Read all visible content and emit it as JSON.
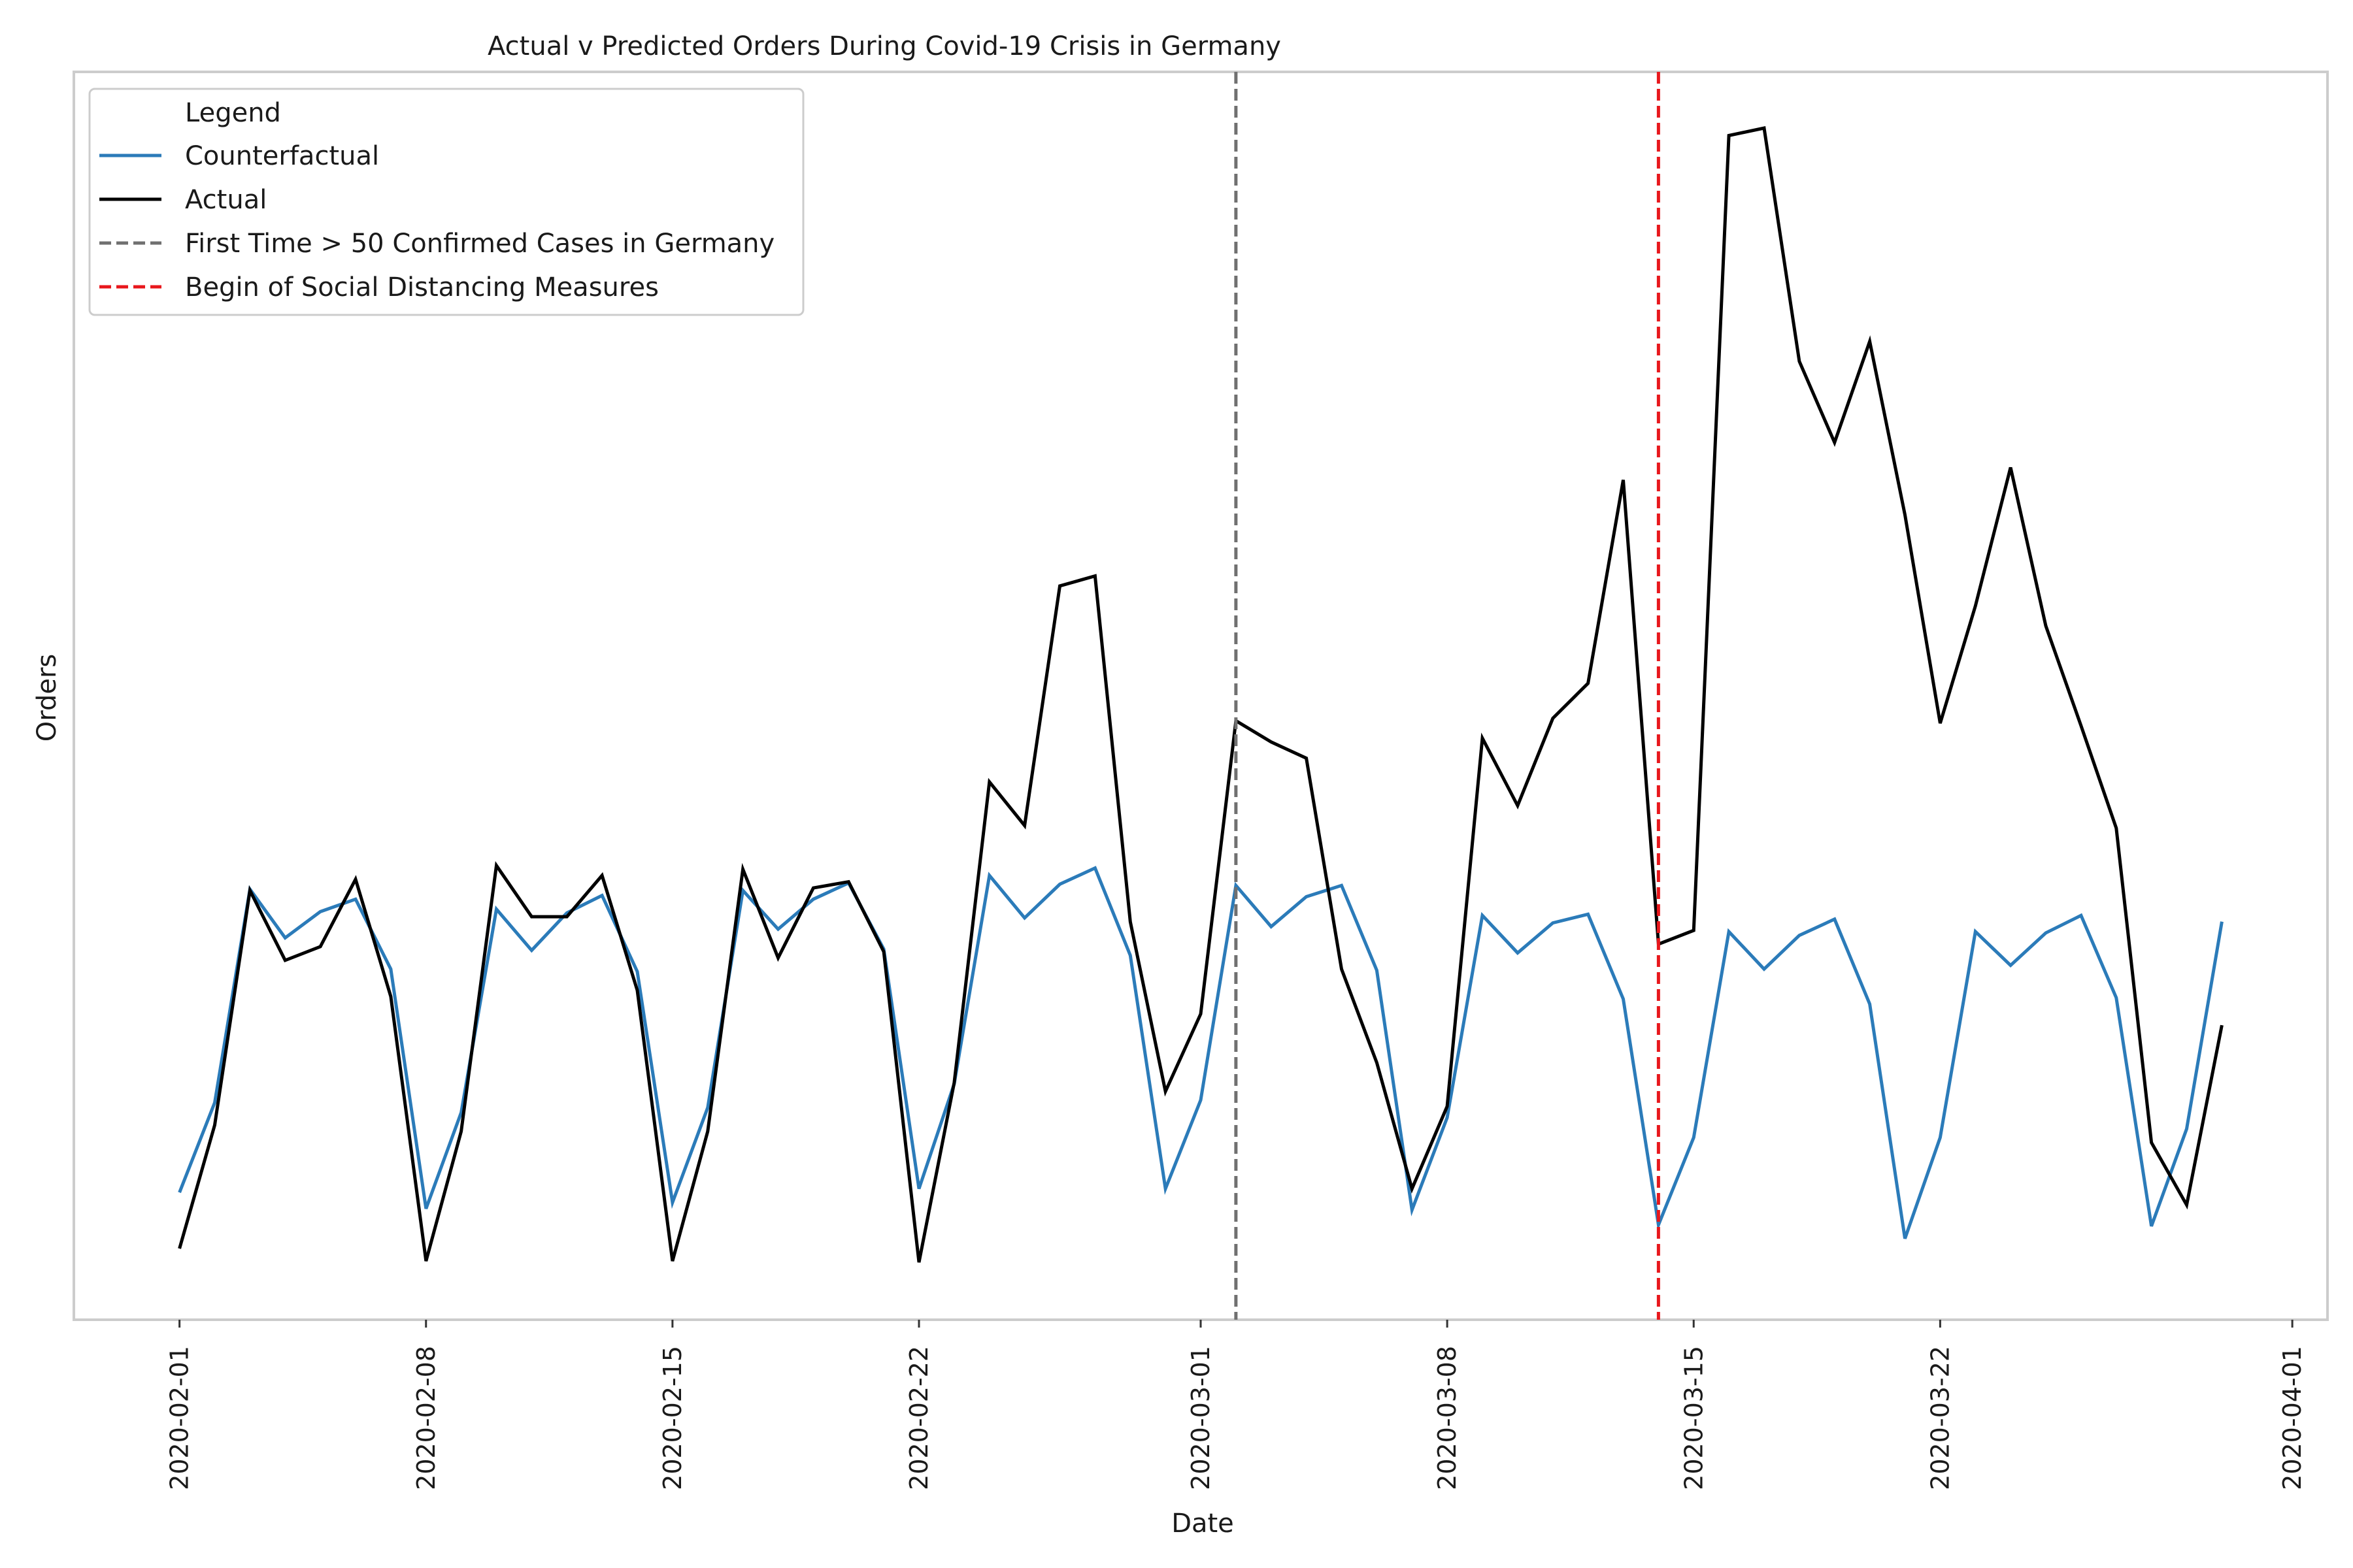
{
  "chart_data": {
    "type": "line",
    "title": "Actual v Predicted Orders During Covid-19 Crisis in Germany",
    "xlabel": "Date",
    "ylabel": "Orders",
    "x_start": "2020-02-01",
    "xlim": [
      "2020-01-29",
      "2020-04-02"
    ],
    "ylim": [
      0,
      100
    ],
    "y_ticks_shown": false,
    "grid": false,
    "x_ticks": [
      "2020-02-01",
      "2020-02-08",
      "2020-02-15",
      "2020-02-22",
      "2020-03-01",
      "2020-03-08",
      "2020-03-15",
      "2020-03-22",
      "2020-04-01"
    ],
    "legend": {
      "title": "Legend",
      "placement": "top-left",
      "entries": [
        {
          "label": "Counterfactual",
          "color": "#2b7bb9",
          "style": "solid"
        },
        {
          "label": "Actual",
          "color": "#000000",
          "style": "solid"
        },
        {
          "label": "First Time > 50 Confirmed Cases in Germany",
          "color": "#707070",
          "style": "dashed"
        },
        {
          "label": "Begin of Social Distancing Measures",
          "color": "#e8171c",
          "style": "dashed"
        }
      ]
    },
    "vlines": [
      {
        "label": "First Time > 50 Confirmed Cases in Germany",
        "date": "2020-03-02",
        "color": "#707070"
      },
      {
        "label": "Begin of Social Distancing Measures",
        "date": "2020-03-14",
        "color": "#e8171c"
      }
    ],
    "series": [
      {
        "name": "Counterfactual",
        "color": "#2b7bb9",
        "values": [
          10.2,
          17.4,
          34.5,
          30.6,
          32.7,
          33.7,
          28.1,
          8.9,
          16.6,
          32.9,
          29.6,
          32.6,
          34.0,
          27.9,
          9.4,
          17.0,
          34.4,
          31.3,
          33.7,
          35.0,
          29.7,
          10.5,
          18.9,
          35.6,
          32.2,
          34.9,
          36.2,
          29.2,
          10.5,
          17.6,
          34.8,
          31.5,
          33.9,
          34.8,
          28.0,
          8.8,
          16.2,
          32.4,
          29.4,
          31.8,
          32.5,
          25.7,
          7.6,
          14.6,
          31.1,
          28.1,
          30.8,
          32.1,
          25.3,
          6.5,
          14.6,
          31.1,
          28.4,
          31.0,
          32.4,
          25.8,
          7.5,
          15.3,
          31.9
        ]
      },
      {
        "name": "Actual",
        "color": "#000000",
        "values": [
          5.7,
          15.6,
          34.4,
          28.8,
          29.9,
          35.3,
          25.9,
          4.7,
          15.1,
          36.4,
          32.3,
          32.3,
          35.6,
          26.4,
          4.7,
          15.1,
          36.1,
          29.0,
          34.6,
          35.1,
          29.5,
          4.6,
          19.0,
          43.1,
          39.6,
          58.8,
          59.6,
          31.9,
          18.3,
          24.5,
          48.0,
          46.3,
          45.0,
          28.1,
          20.6,
          10.5,
          17.1,
          46.6,
          41.2,
          48.2,
          51.0,
          67.3,
          30.1,
          31.2,
          94.9,
          95.5,
          76.8,
          70.3,
          78.4,
          64.5,
          47.8,
          57.2,
          68.3,
          55.6,
          47.6,
          39.4,
          14.2,
          9.2,
          23.6
        ]
      }
    ]
  }
}
